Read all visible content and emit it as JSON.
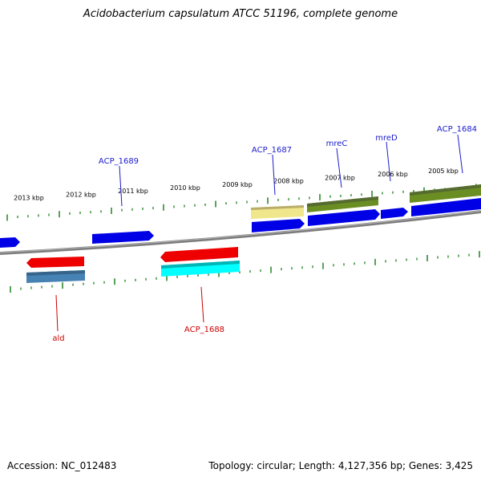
{
  "title": "Acidobacterium capsulatum ATCC 51196, complete genome",
  "footer": {
    "accession": "Accession: NC_012483",
    "summary": "Topology: circular; Length: 4,127,356 bp; Genes: 3,425"
  },
  "colors": {
    "backbone": "#8a8a8a",
    "ticks": "#2e8b2e",
    "label_forward": "#1a1acc",
    "label_reverse": "#cc0000",
    "cds_blue": "#0000e6",
    "cds_red": "#ee0000",
    "cds_olive": "#6b8e23",
    "cds_khaki": "#f0e68c",
    "cds_steel": "#4682b4",
    "cds_cyan": "#00ffff"
  },
  "axis_labels": [
    "2005 kbp",
    "2006 kbp",
    "2007 kbp",
    "2008 kbp",
    "2009 kbp",
    "2010 kbp",
    "2011 kbp",
    "2012 kbp",
    "2013 kbp"
  ],
  "gene_labels": [
    {
      "text": "ACP_1684",
      "strand": "forward"
    },
    {
      "text": "mreD",
      "strand": "forward"
    },
    {
      "text": "mreC",
      "strand": "forward"
    },
    {
      "text": "ACP_1687",
      "strand": "forward"
    },
    {
      "text": "ACP_1689",
      "strand": "forward"
    },
    {
      "text": "ald",
      "strand": "reverse"
    },
    {
      "text": "ACP_1688",
      "strand": "reverse"
    }
  ]
}
